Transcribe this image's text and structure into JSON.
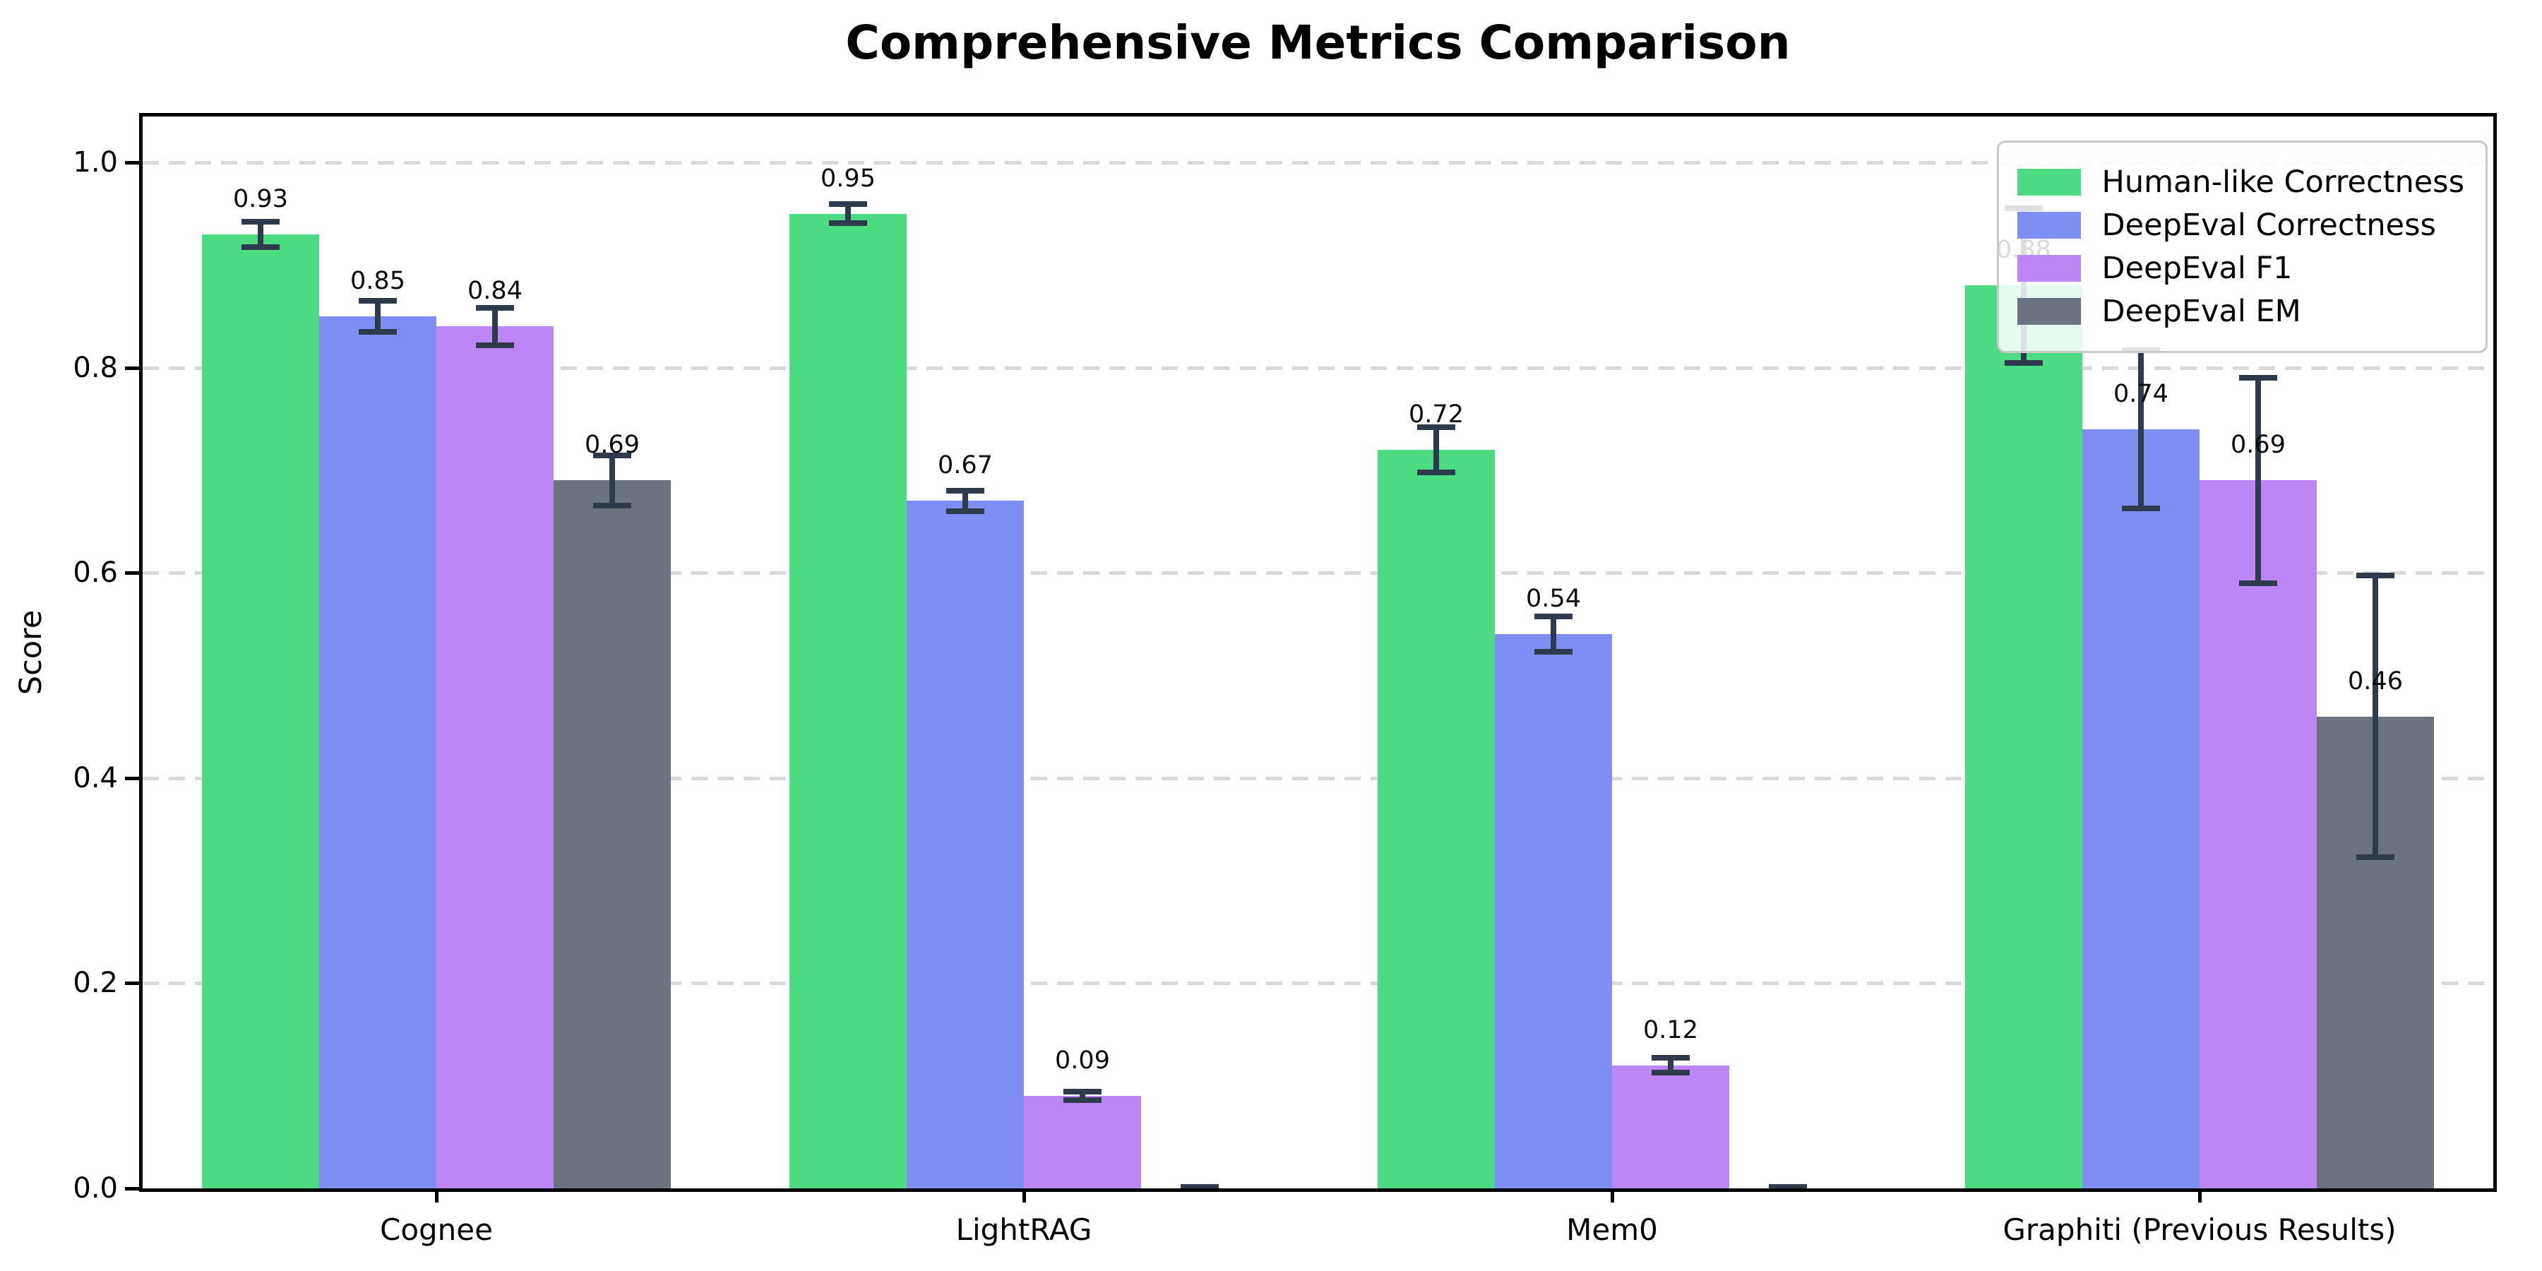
{
  "chart_data": {
    "type": "bar",
    "title": "Comprehensive Metrics Comparison",
    "ylabel": "Score",
    "xlabel": "",
    "categories": [
      "Cognee",
      "LightRAG",
      "Mem0",
      "Graphiti (Previous Results)"
    ],
    "series": [
      {
        "name": "Human-like Correctness",
        "color": "#4cda82",
        "values": [
          0.93,
          0.95,
          0.72,
          0.88
        ],
        "errors": [
          0.015,
          0.012,
          0.025,
          0.078
        ],
        "labels": [
          "0.93",
          "0.95",
          "0.72",
          "0.88"
        ]
      },
      {
        "name": "DeepEval Correctness",
        "color": "#808df2",
        "values": [
          0.85,
          0.67,
          0.54,
          0.74
        ],
        "errors": [
          0.018,
          0.013,
          0.02,
          0.08
        ],
        "labels": [
          "0.85",
          "0.67",
          "0.54",
          "0.74"
        ]
      },
      {
        "name": "DeepEval F1",
        "color": "#bd86f5",
        "values": [
          0.84,
          0.09,
          0.12,
          0.69
        ],
        "errors": [
          0.021,
          0.007,
          0.01,
          0.103
        ],
        "labels": [
          "0.84",
          "0.09",
          "0.12",
          "0.69"
        ]
      },
      {
        "name": "DeepEval EM",
        "color": "#6b7280",
        "values": [
          0.69,
          0.0,
          0.0,
          0.46
        ],
        "errors": [
          0.027,
          0.004,
          0.004,
          0.14
        ],
        "labels": [
          "0.69",
          null,
          null,
          "0.46"
        ]
      }
    ],
    "yticks": [
      0.0,
      0.2,
      0.4,
      0.6,
      0.8,
      1.0
    ],
    "ytick_labels": [
      "0.0",
      "0.2",
      "0.4",
      "0.6",
      "0.8",
      "1.0"
    ],
    "ylim": [
      0.0,
      1.045
    ],
    "grid": "horizontal-dashed",
    "legend_position": "upper-right",
    "error_bar_color": "#2e3b4d",
    "grid_color": "#d9d9d9"
  }
}
